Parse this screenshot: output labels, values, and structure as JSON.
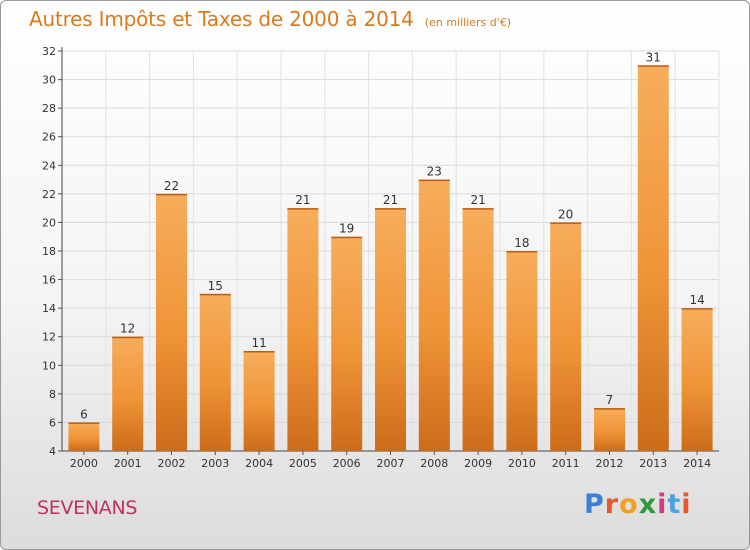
{
  "chart_data": {
    "type": "bar",
    "title": "Autres Impôts et Taxes de 2000 à 2014",
    "unit_note": "(en milliers d'€)",
    "categories": [
      "2000",
      "2001",
      "2002",
      "2003",
      "2004",
      "2005",
      "2006",
      "2007",
      "2008",
      "2009",
      "2010",
      "2011",
      "2012",
      "2013",
      "2014"
    ],
    "values": [
      6,
      12,
      22,
      15,
      11,
      21,
      19,
      21,
      23,
      21,
      18,
      20,
      7,
      31,
      14
    ],
    "ylim": [
      4,
      32
    ],
    "yticks": [
      4,
      6,
      8,
      10,
      12,
      14,
      16,
      18,
      20,
      22,
      24,
      26,
      28,
      30,
      32
    ],
    "grid": true,
    "bar_color": "#f0973a",
    "bar_color_light": "#f7ad5c",
    "bar_color_dark": "#cc6c1a"
  },
  "commune": "SEVENANS",
  "logo": {
    "text": "Proxiti",
    "alt": "Proxiti"
  },
  "colors": {
    "title": "#d87a1f",
    "commune": "#c0315c"
  }
}
